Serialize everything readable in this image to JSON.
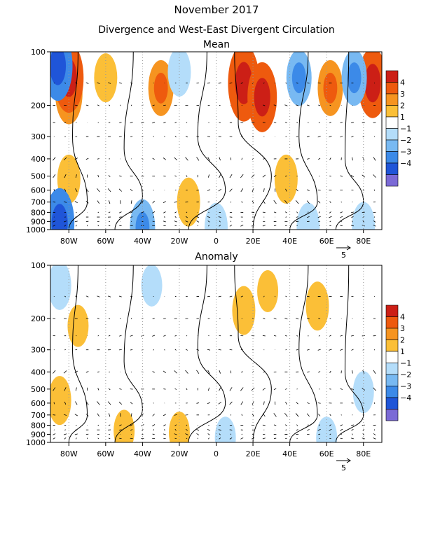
{
  "page": {
    "title": "November 2017",
    "subtitle": "Divergence and West-East Divergent Circulation"
  },
  "chart_data": [
    {
      "type": "heatmap",
      "title": "Mean",
      "x_tick_labels": [
        "80W",
        "60W",
        "40W",
        "20W",
        "0",
        "20E",
        "40E",
        "60E",
        "80E"
      ],
      "x_ticks_deg": [
        -80,
        -60,
        -40,
        -20,
        0,
        20,
        40,
        60,
        80
      ],
      "xlim": [
        -90,
        90
      ],
      "y_tick_labels": [
        "100",
        "200",
        "300",
        "400",
        "500",
        "600",
        "700",
        "800",
        "900",
        "1000"
      ],
      "y_ticks_hpa": [
        100,
        200,
        300,
        400,
        500,
        600,
        700,
        800,
        900,
        1000
      ],
      "ylim": [
        1000,
        100
      ],
      "y_scale": "log",
      "reference_vector_label": "5",
      "colorbar": {
        "labels": [
          "4",
          "3",
          "2",
          "1",
          "-1",
          "-2",
          "-3",
          "-4"
        ],
        "colors": [
          "#cc1f16",
          "#ee5a0e",
          "#f69420",
          "#fbbf37",
          "#ffffff",
          "#b4ddfa",
          "#78b9f2",
          "#3c8ae8",
          "#1f55d8",
          "#7b6ad6"
        ]
      },
      "blobs": [
        {
          "lon": -80,
          "p": 170,
          "v": 2.5
        },
        {
          "lon": -80,
          "p": 140,
          "v": 3.0
        },
        {
          "lon": -60,
          "p": 140,
          "v": 1.5
        },
        {
          "lon": -30,
          "p": 160,
          "v": 2.0
        },
        {
          "lon": 15,
          "p": 150,
          "v": 3.5
        },
        {
          "lon": 25,
          "p": 180,
          "v": 3.0
        },
        {
          "lon": 62,
          "p": 160,
          "v": 2.0
        },
        {
          "lon": 85,
          "p": 150,
          "v": 3.0
        },
        {
          "lon": -86,
          "p": 120,
          "v": -3.0
        },
        {
          "lon": -20,
          "p": 130,
          "v": -1.5
        },
        {
          "lon": 45,
          "p": 140,
          "v": -2.0
        },
        {
          "lon": 75,
          "p": 140,
          "v": -2.0
        },
        {
          "lon": -80,
          "p": 520,
          "v": 1.5
        },
        {
          "lon": -15,
          "p": 700,
          "v": 1.5
        },
        {
          "lon": 38,
          "p": 520,
          "v": 1.5
        },
        {
          "lon": -85,
          "p": 920,
          "v": -3.0
        },
        {
          "lon": -40,
          "p": 970,
          "v": -2.0
        },
        {
          "lon": 0,
          "p": 970,
          "v": -1.5
        },
        {
          "lon": 50,
          "p": 970,
          "v": -1.5
        },
        {
          "lon": 80,
          "p": 960,
          "v": -1.5
        }
      ]
    },
    {
      "type": "heatmap",
      "title": "Anomaly",
      "x_tick_labels": [
        "80W",
        "60W",
        "40W",
        "20W",
        "0",
        "20E",
        "40E",
        "60E",
        "80E"
      ],
      "x_ticks_deg": [
        -80,
        -60,
        -40,
        -20,
        0,
        20,
        40,
        60,
        80
      ],
      "xlim": [
        -90,
        90
      ],
      "y_tick_labels": [
        "100",
        "200",
        "300",
        "400",
        "500",
        "600",
        "700",
        "800",
        "900",
        "1000"
      ],
      "y_ticks_hpa": [
        100,
        200,
        300,
        400,
        500,
        600,
        700,
        800,
        900,
        1000
      ],
      "ylim": [
        1000,
        100
      ],
      "y_scale": "log",
      "reference_vector_label": "5",
      "colorbar": {
        "labels": [
          "4",
          "3",
          "2",
          "1",
          "-1",
          "-2",
          "-3",
          "-4"
        ],
        "colors": [
          "#cc1f16",
          "#ee5a0e",
          "#f69420",
          "#fbbf37",
          "#ffffff",
          "#b4ddfa",
          "#78b9f2",
          "#3c8ae8",
          "#1f55d8",
          "#7b6ad6"
        ]
      },
      "blobs": [
        {
          "lon": -85,
          "p": 130,
          "v": -1.5
        },
        {
          "lon": -35,
          "p": 130,
          "v": -1.0
        },
        {
          "lon": 15,
          "p": 180,
          "v": 1.5
        },
        {
          "lon": 28,
          "p": 140,
          "v": 1.0
        },
        {
          "lon": 55,
          "p": 170,
          "v": 1.5
        },
        {
          "lon": -75,
          "p": 220,
          "v": 1.0
        },
        {
          "lon": -85,
          "p": 580,
          "v": 1.5
        },
        {
          "lon": -50,
          "p": 860,
          "v": 1.0
        },
        {
          "lon": -20,
          "p": 880,
          "v": 1.0
        },
        {
          "lon": 5,
          "p": 940,
          "v": -1.0
        },
        {
          "lon": 60,
          "p": 940,
          "v": -1.0
        },
        {
          "lon": 80,
          "p": 520,
          "v": -1.0
        }
      ]
    }
  ]
}
